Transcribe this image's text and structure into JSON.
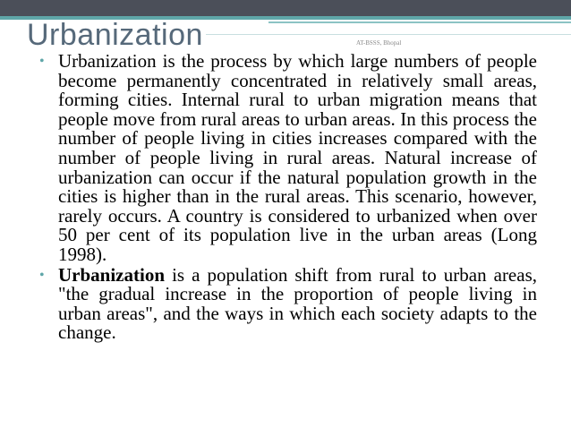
{
  "title": "Urbanization",
  "footer": "AT-BSSS, Bhopal",
  "bullets": [
    {
      "text": "Urbanization is the process by which large numbers of people become permanently concentrated in relatively small areas, forming cities. Internal rural to urban migration means that people move from rural areas to urban areas. In this process the number of people living in cities increases compared with the number of people living in rural areas. Natural increase of urbanization can occur if the natural population growth in the cities is higher than in the rural areas. This scenario, however, rarely occurs. A country is considered to urbanized when over 50 per cent of its population live in the urban areas (Long 1998)."
    },
    {
      "bold": "Urbanization",
      "text": "is a population shift from rural to urban areas, \"the gradual increase in the proportion of people living in urban areas\", and the ways in which each society adapts to the change."
    }
  ]
}
